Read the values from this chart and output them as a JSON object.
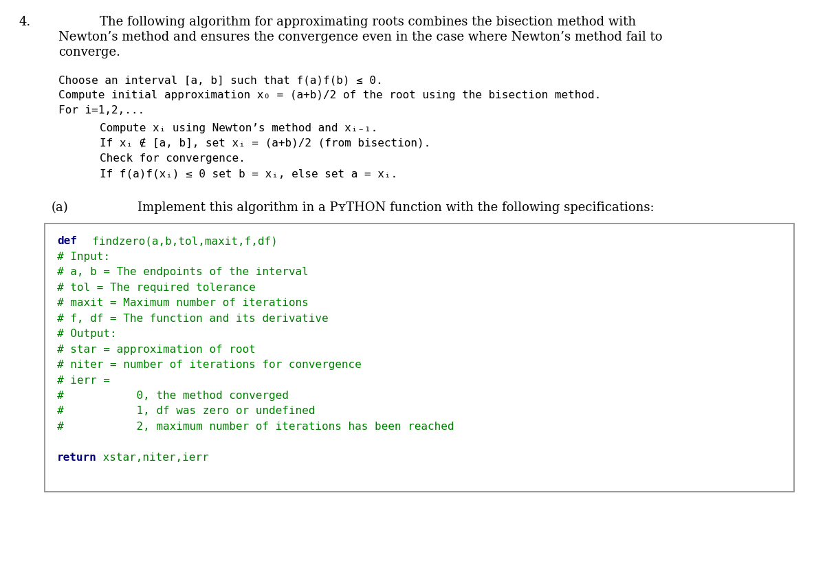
{
  "bg_color": "#ffffff",
  "text_color": "#000000",
  "serif_size": 13.0,
  "mono_size": 11.5,
  "code_size": 11.5,
  "def_color": "#000080",
  "comment_color": "#008000",
  "return_color": "#000080",
  "box_border_color": "#888888",
  "box_bg_color": "#ffffff",
  "intro_line1": "The following algorithm for approximating roots combines the bisection method with",
  "intro_line2": "Newton’s method and ensures the convergence even in the case where Newton’s method fail to",
  "intro_line3": "converge.",
  "algo_line1": "Choose an interval [a, b] such that f(a)f(b) ≤ 0.",
  "algo_line2": "Compute initial approximation x₀ = (a+b)/2 of the root using the bisection method.",
  "algo_line3": "For i=1,2,...",
  "algo_line4": "Compute xᵢ using Newton’s method and xᵢ₋₁.",
  "algo_line5": "If xᵢ ∉ [a, b], set xᵢ = (a+b)/2 (from bisection).",
  "algo_line6": "Check for convergence.",
  "algo_line7": "If f(a)f(xᵢ) ≤ 0 set b = xᵢ, else set a = xᵢ.",
  "parta_label": "(a)",
  "parta_text": "Implement this algorithm in a PʏTHON function with the following specifications:",
  "code_line1_kw": "def",
  "code_line1_rest": "  findzero(a,b,tol,maxit,f,df)",
  "code_line2": "# Input:",
  "code_line3": "# a, b = The endpoints of the interval",
  "code_line4": "# tol = The required tolerance",
  "code_line5": "# maxit = Maximum number of iterations",
  "code_line6": "# f, df = The function and its derivative",
  "code_line7": "# Output:",
  "code_line8": "# star = approximation of root",
  "code_line9": "# niter = number of iterations for convergence",
  "code_line10": "# ierr =",
  "code_line11": "#           0, the method converged",
  "code_line12": "#           1, df was zero or undefined",
  "code_line13": "#           2, maximum number of iterations has been reached",
  "code_line14_kw": "return",
  "code_line14_rest": " xstar,niter,ierr"
}
